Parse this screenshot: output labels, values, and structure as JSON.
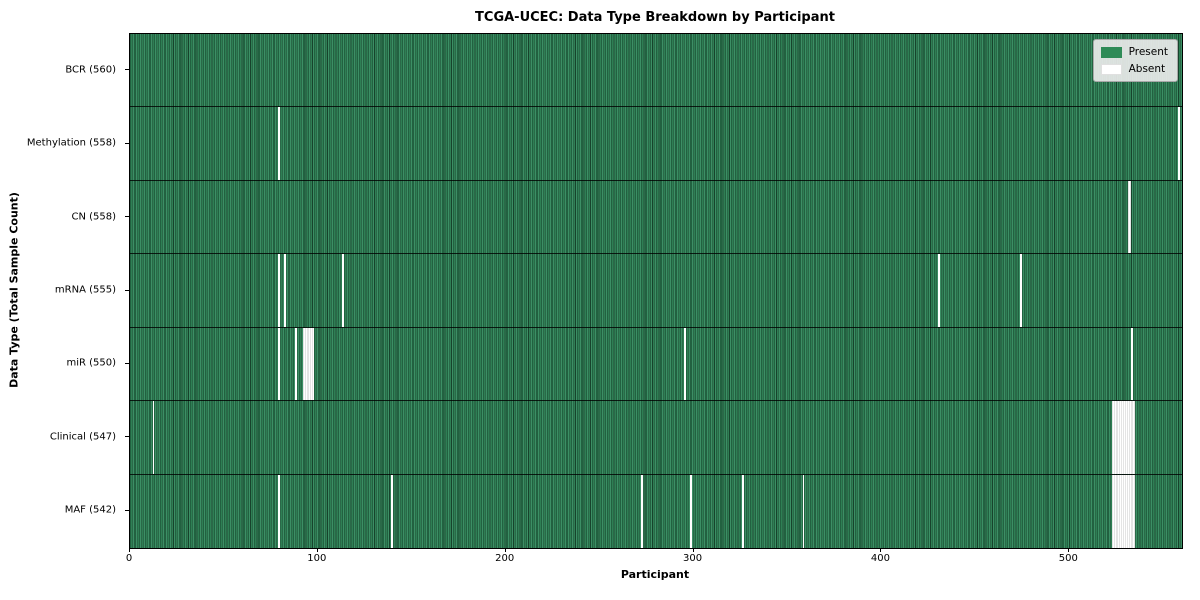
{
  "title": "TCGA-UCEC: Data Type Breakdown by Participant",
  "xlabel": "Participant",
  "ylabel": "Data Type (Total Sample Count)",
  "legend": {
    "present_label": "Present",
    "absent_label": "Absent"
  },
  "colors": {
    "present_green": "#2e8b57",
    "present_green_dark_edge": "#17432c",
    "present_green_alt": "#3c8f65",
    "absent_white": "#ffffff",
    "legend_background": "#eaeaea",
    "row_divider": "#000000"
  },
  "chart_data": {
    "type": "heatmap",
    "title": "TCGA-UCEC: Data Type Breakdown by Participant",
    "xlabel": "Participant",
    "ylabel": "Data Type (Total Sample Count)",
    "x_ticks": [
      0,
      100,
      200,
      300,
      400,
      500
    ],
    "x_range": [
      0,
      560
    ],
    "total_participants": 560,
    "legend_entries": [
      {
        "label": "Present",
        "color": "#2e8b57"
      },
      {
        "label": "Absent",
        "color": "#ffffff"
      }
    ],
    "rows": [
      {
        "data_type": "BCR",
        "label": "BCR (560)",
        "present_count": 560,
        "absent_participants": []
      },
      {
        "data_type": "Methylation",
        "label": "Methylation (558)",
        "present_count": 558,
        "absent_participants": [
          79,
          558
        ]
      },
      {
        "data_type": "CN",
        "label": "CN (558)",
        "present_count": 558,
        "absent_participants": [
          531,
          532
        ]
      },
      {
        "data_type": "mRNA",
        "label": "mRNA (555)",
        "present_count": 555,
        "absent_participants": [
          79,
          82,
          113,
          430,
          474
        ]
      },
      {
        "data_type": "miR",
        "label": "miR (550)",
        "present_count": 550,
        "absent_participants": [
          79,
          88,
          92,
          93,
          94,
          95,
          96,
          97,
          295,
          533
        ]
      },
      {
        "data_type": "Clinical",
        "label": "Clinical (547)",
        "present_count": 547,
        "absent_participants": [
          12,
          523,
          524,
          525,
          526,
          527,
          528,
          529,
          530,
          531,
          532,
          533,
          534
        ]
      },
      {
        "data_type": "MAF",
        "label": "MAF (542)",
        "present_count": 542,
        "absent_participants": [
          79,
          139,
          272,
          298,
          326,
          358,
          523,
          524,
          525,
          526,
          527,
          528,
          529,
          530,
          531,
          532,
          533,
          534
        ]
      }
    ]
  }
}
